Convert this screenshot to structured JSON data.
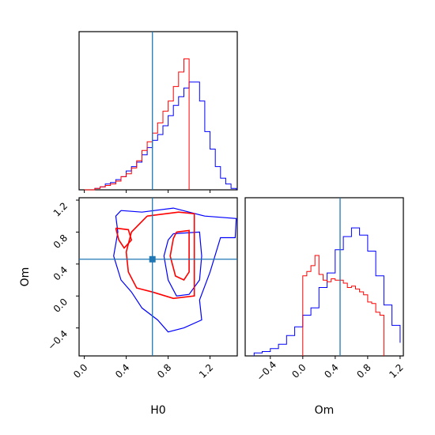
{
  "chart_data": {
    "type": "corner",
    "params": [
      "H0",
      "Om"
    ],
    "colors": {
      "series_a": "#0000ff",
      "series_b": "#ff0000",
      "truth": "#1f77b4"
    },
    "truth": {
      "H0": 0.65,
      "Om": 0.46
    },
    "xlabels": {
      "bottom_left": "H0",
      "bottom_right": "Om"
    },
    "ylabels": {
      "bottom_left": "Om"
    },
    "panels": [
      {
        "id": "H0-marginal",
        "type": "histogram-step",
        "xlim": [
          -0.05,
          1.46
        ],
        "ymax": 1.0,
        "series": [
          {
            "color_key": "series_a",
            "edges": [
              0.0,
              0.05,
              0.1,
              0.15,
              0.2,
              0.25,
              0.3,
              0.35,
              0.4,
              0.45,
              0.5,
              0.55,
              0.6,
              0.65,
              0.7,
              0.75,
              0.8,
              0.85,
              0.9,
              0.95,
              1.0,
              1.05,
              1.1,
              1.15,
              1.2,
              1.25,
              1.3,
              1.35,
              1.4,
              1.45
            ],
            "counts": [
              0,
              0,
              0.01,
              0.02,
              0.04,
              0.05,
              0.07,
              0.09,
              0.13,
              0.16,
              0.19,
              0.24,
              0.29,
              0.34,
              0.38,
              0.44,
              0.51,
              0.58,
              0.64,
              0.7,
              0.74,
              0.74,
              0.61,
              0.4,
              0.28,
              0.16,
              0.08,
              0.04,
              0.01
            ]
          },
          {
            "color_key": "series_b",
            "edges": [
              0.0,
              0.05,
              0.1,
              0.15,
              0.2,
              0.25,
              0.3,
              0.35,
              0.4,
              0.45,
              0.5,
              0.55,
              0.6,
              0.65,
              0.7,
              0.75,
              0.8,
              0.85,
              0.9,
              0.95,
              1.0
            ],
            "counts": [
              0,
              0,
              0.01,
              0.02,
              0.03,
              0.04,
              0.06,
              0.09,
              0.11,
              0.15,
              0.2,
              0.27,
              0.33,
              0.39,
              0.46,
              0.54,
              0.61,
              0.71,
              0.81,
              0.9,
              0
            ]
          }
        ]
      },
      {
        "id": "Om-marginal",
        "type": "histogram-step",
        "xlim": [
          -0.71,
          1.24
        ],
        "ymax": 1.0,
        "series": [
          {
            "color_key": "series_a",
            "edges": [
              -0.6,
              -0.5,
              -0.4,
              -0.3,
              -0.2,
              -0.1,
              0.0,
              0.1,
              0.2,
              0.3,
              0.4,
              0.5,
              0.6,
              0.7,
              0.8,
              0.9,
              1.0,
              1.1,
              1.2
            ],
            "counts": [
              0.02,
              0.03,
              0.05,
              0.08,
              0.14,
              0.2,
              0.28,
              0.33,
              0.47,
              0.57,
              0.73,
              0.82,
              0.88,
              0.83,
              0.72,
              0.55,
              0.35,
              0.21,
              0.09
            ]
          },
          {
            "color_key": "series_b",
            "edges": [
              0.0,
              0.05,
              0.1,
              0.15,
              0.2,
              0.25,
              0.3,
              0.35,
              0.4,
              0.45,
              0.5,
              0.55,
              0.6,
              0.65,
              0.7,
              0.75,
              0.8,
              0.85,
              0.9,
              0.95,
              1.0
            ],
            "counts": [
              0.55,
              0.58,
              0.62,
              0.69,
              0.56,
              0.52,
              0.51,
              0.53,
              0.52,
              0.52,
              0.5,
              0.47,
              0.48,
              0.46,
              0.44,
              0.42,
              0.37,
              0.36,
              0.3,
              0.28,
              0
            ]
          }
        ]
      },
      {
        "id": "H0-Om-contour",
        "type": "contour",
        "xlim": [
          -0.05,
          1.46
        ],
        "ylim": [
          -0.75,
          1.23
        ],
        "contours": [
          {
            "color_key": "series_a",
            "points": [
              [
                0.35,
                1.07
              ],
              [
                0.55,
                1.05
              ],
              [
                0.85,
                1.1
              ],
              [
                1.15,
                1.0
              ],
              [
                1.45,
                0.97
              ],
              [
                1.44,
                0.73
              ],
              [
                1.3,
                0.73
              ],
              [
                1.2,
                0.3
              ],
              [
                1.1,
                -0.05
              ],
              [
                1.12,
                -0.3
              ],
              [
                0.95,
                -0.4
              ],
              [
                0.8,
                -0.45
              ],
              [
                0.7,
                -0.3
              ],
              [
                0.55,
                -0.15
              ],
              [
                0.45,
                0.05
              ],
              [
                0.35,
                0.2
              ],
              [
                0.28,
                0.5
              ],
              [
                0.32,
                0.8
              ],
              [
                0.3,
                1.0
              ],
              [
                0.35,
                1.07
              ]
            ]
          },
          {
            "color_key": "series_a",
            "points": [
              [
                0.85,
                0.78
              ],
              [
                1.1,
                0.8
              ],
              [
                1.12,
                0.5
              ],
              [
                1.1,
                0.2
              ],
              [
                1.0,
                0.02
              ],
              [
                0.88,
                0.0
              ],
              [
                0.8,
                0.2
              ],
              [
                0.76,
                0.5
              ],
              [
                0.8,
                0.7
              ],
              [
                0.85,
                0.78
              ]
            ]
          },
          {
            "color_key": "series_b",
            "points": [
              [
                0.6,
                1.0
              ],
              [
                0.9,
                1.05
              ],
              [
                1.05,
                1.03
              ],
              [
                1.05,
                0.0
              ],
              [
                0.85,
                -0.03
              ],
              [
                0.65,
                0.05
              ],
              [
                0.5,
                0.1
              ],
              [
                0.42,
                0.3
              ],
              [
                0.4,
                0.55
              ],
              [
                0.45,
                0.8
              ],
              [
                0.6,
                1.0
              ]
            ]
          },
          {
            "color_key": "series_b",
            "points": [
              [
                0.88,
                0.8
              ],
              [
                1.0,
                0.82
              ],
              [
                1.0,
                0.3
              ],
              [
                0.95,
                0.2
              ],
              [
                0.87,
                0.25
              ],
              [
                0.82,
                0.5
              ],
              [
                0.85,
                0.72
              ],
              [
                0.88,
                0.8
              ]
            ]
          },
          {
            "color_key": "series_b",
            "points": [
              [
                0.3,
                0.85
              ],
              [
                0.42,
                0.83
              ],
              [
                0.45,
                0.7
              ],
              [
                0.38,
                0.6
              ],
              [
                0.33,
                0.7
              ],
              [
                0.3,
                0.85
              ]
            ]
          }
        ]
      }
    ],
    "ticks": {
      "H0_x": [
        "0.0",
        "0.4",
        "0.8",
        "1.2"
      ],
      "Om_y": [
        "1.2",
        "0.8",
        "0.4",
        "0.0",
        "−0.4"
      ],
      "Om_x": [
        "−0.4",
        "0.0",
        "0.4",
        "0.8",
        "1.2"
      ]
    },
    "tick_values": {
      "H0_x": [
        0.0,
        0.4,
        0.8,
        1.2
      ],
      "Om_y": [
        1.2,
        0.8,
        0.4,
        0.0,
        -0.4
      ],
      "Om_x": [
        -0.4,
        0.0,
        0.4,
        0.8,
        1.2
      ]
    }
  }
}
